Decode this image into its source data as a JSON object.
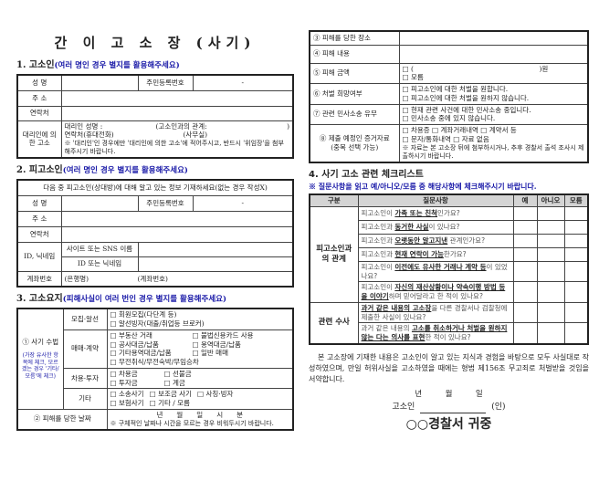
{
  "title": "간 이 고 소 장 (사기)",
  "s1": {
    "heading": "1. 고소인",
    "hint": "(여러 명인 경우 별지를 활용해주세요)",
    "name": "성 명",
    "rrn": "주민등록번호",
    "rrn_val": "-",
    "addr": "주 소",
    "contact": "연락처",
    "proxy": "대리인에 의한 고소",
    "proxy_name": "대리인 성명 :",
    "proxy_rel": "(고소인과의 관계:",
    "proxy_close": ")",
    "proxy_phone": "연락처(휴대전화)",
    "proxy_office": "(사무실)",
    "proxy_note": "※ '대리인'인 경우에만 '대리인에 의한 고소'에 적어주시고, 반드시 '위임장'을 첨부해주시기 바랍니다."
  },
  "s2": {
    "heading": "2. 피고소인",
    "hint": "(여러 명인 경우 별지를 활용해주세요)",
    "intro": "다음 중 피고소인(상대방)에 대해 알고 있는 정보 기재하세요(없는 경우 작성X)",
    "name": "성 명",
    "rrn": "주민등록번호",
    "rrn_val": "-",
    "addr": "주 소",
    "contact": "연락처",
    "id": "ID, 닉네임",
    "site": "사이트 또는 SNS 이름",
    "nick": "ID 또는 닉네임",
    "account": "계좌번호",
    "bank": "(은행명)",
    "acct_no": "(계좌번호)"
  },
  "s3": {
    "heading": "3. 고소요지",
    "hint": "(피해사실이 여러 번인 경우 별지를 활용해주세요)",
    "method": "① 사기 수법",
    "method_note": "(가장 유사한 항목에 체크, 모르겠는 경우 '기타/모름'에 체크)",
    "groups": [
      {
        "label": "모집·알선",
        "items": [
          "회원모집(다단계 등)",
          "알선빙자(대출/취업등 브로커)"
        ]
      },
      {
        "label": "매매·계약",
        "items": [
          "부동산 거래",
          "불법신용카드 사용",
          "공사대금/납품",
          "용역대금/납품",
          "기타용역대금/납품",
          "일반 매매",
          "무전취식/무전숙박/무임승차"
        ]
      },
      {
        "label": "차용·투자",
        "items": [
          "차용금",
          "선불금",
          "투자금",
          "계금"
        ]
      },
      {
        "label": "기타",
        "items": [
          "소송사기",
          "보조금 사기",
          "사칭·빙자",
          "보험사기",
          "기타 / 모름"
        ]
      }
    ],
    "date_label": "② 피해를 당한 날짜",
    "date_fields": "년　　월　　일　　시　　분",
    "date_note": "※ 구체적인 날짜나 시간을 모르는 경우 비워두시기 바랍니다.",
    "place": "③ 피해를 당한 장소",
    "content": "④ 피해 내용",
    "amount": "⑤ 피해 금액",
    "amount_open": "□ (",
    "amount_unit": ")원",
    "unknown": "□ 모름",
    "punish": "⑥ 처벌 희망여부",
    "punish_yes": "□ 피고소인에 대한 처벌을 원합니다.",
    "punish_no": "□ 피고소인에 대한 처벌을 원하지 않습니다.",
    "civil": "⑦ 관련 민사소송 유무",
    "civil_yes": "□ 현재 관련 사건에 대한 민사소송 중입니다.",
    "civil_no": "□ 민사소송 중에 있지 않습니다.",
    "evidence": "⑧ 제출 예정인 증거자료",
    "evidence_sub": "(중복 선택 가능)",
    "evidence_l1": "□ 차용증 □ 계좌거래내역 □ 계약서 등",
    "evidence_l2": "□ 문자/통화내역 □ 자료 없음",
    "evidence_note": "※ 자료는 본 고소장 뒤에 첨부하시거나, 추후 경찰서 출석 조사시 제출하시기 바랍니다."
  },
  "s4": {
    "heading": "4. 사기 고소 관련 체크리스트",
    "hint": "※ 질문사항을 읽고 예/아니오/모름 중 해당사항에 체크해주시기 바랍니다.",
    "cols": [
      "구분",
      "질문사항",
      "예",
      "아니오",
      "모름"
    ],
    "groups": [
      {
        "label": "피고소인과의 관계",
        "rows": [
          {
            "pre": "피고소인이 ",
            "em": "가족 또는 친척",
            "post": "인가요?"
          },
          {
            "pre": "피고소인과 ",
            "em": "동거한 사실",
            "post": "이 있나요?"
          },
          {
            "pre": "피고소인과 ",
            "em": "오랫동안 알고지낸",
            "post": " 관계인가요?"
          },
          {
            "pre": "피고소인과 ",
            "em": "현재 연락이 가능",
            "post": "한가요?"
          },
          {
            "pre": "피고소인이 ",
            "em": "이전에도 유사한 거래나 계약 등",
            "post": "이 있었나요?"
          },
          {
            "pre": "피고소인이 ",
            "em": "자신의 재산상황이나 약속이행 방법 등을 이야기",
            "post": "하며 믿어달라고 한 적이 있나요?"
          }
        ]
      },
      {
        "label": "관련 수사",
        "rows": [
          {
            "pre": "",
            "em": "과거 같은 내용의 고소장",
            "post": "을 다른 경찰서나 검찰청에 제출한 사실이 있나요?"
          },
          {
            "pre": "과거 같은 내용의 ",
            "em": "고소를 취소하거나 처벌을 원하지 않는 다는 의사를 표현",
            "post": "한 적이 있나요?"
          }
        ]
      }
    ]
  },
  "pledge": "본 고소장에 기재한 내용은 고소인이 알고 있는 지식과 경험을 바탕으로 모두 사실대로 작성하였으며, 만일 허위사실을 고소하였을 때에는 형법 제156조 무고죄로 처벌받을 것임을 서약합니다.",
  "date_line": "년　　　월　　　일",
  "signer": "고소인",
  "seal": "(인)",
  "addressee": "○○경찰서 귀중"
}
